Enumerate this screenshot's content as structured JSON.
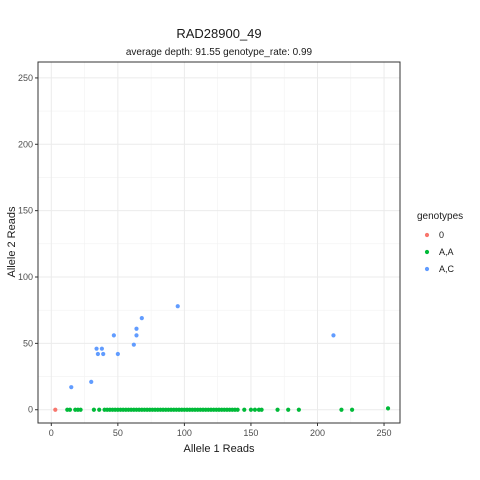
{
  "chart_data": {
    "type": "scatter",
    "title": "RAD28900_49",
    "subtitle": "average depth:  91.55  genotype_rate:  0.99",
    "xlabel": "Allele 1 Reads",
    "ylabel": "Allele 2 Reads",
    "xlim": [
      -10,
      262
    ],
    "ylim": [
      -10,
      262
    ],
    "xticks": [
      0,
      50,
      100,
      150,
      200,
      250
    ],
    "yticks": [
      0,
      50,
      100,
      150,
      200,
      250
    ],
    "grid": true,
    "legend": {
      "title": "genotypes",
      "position": "right",
      "entries": [
        {
          "name": "0",
          "color": "#F8766D"
        },
        {
          "name": "A,A",
          "color": "#00BA38"
        },
        {
          "name": "A,C",
          "color": "#619CFF"
        }
      ]
    },
    "series": [
      {
        "name": "0",
        "color": "#F8766D",
        "points": [
          [
            3,
            0
          ]
        ]
      },
      {
        "name": "A,A",
        "color": "#00BA38",
        "points": [
          [
            12,
            0
          ],
          [
            14,
            0
          ],
          [
            18,
            0
          ],
          [
            20,
            0
          ],
          [
            22,
            0
          ],
          [
            32,
            0
          ],
          [
            36,
            0
          ],
          [
            40,
            0
          ],
          [
            42,
            0
          ],
          [
            44,
            0
          ],
          [
            46,
            0
          ],
          [
            48,
            0
          ],
          [
            50,
            0
          ],
          [
            52,
            0
          ],
          [
            54,
            0
          ],
          [
            56,
            0
          ],
          [
            58,
            0
          ],
          [
            60,
            0
          ],
          [
            62,
            0
          ],
          [
            64,
            0
          ],
          [
            66,
            0
          ],
          [
            68,
            0
          ],
          [
            70,
            0
          ],
          [
            72,
            0
          ],
          [
            74,
            0
          ],
          [
            76,
            0
          ],
          [
            78,
            0
          ],
          [
            80,
            0
          ],
          [
            82,
            0
          ],
          [
            84,
            0
          ],
          [
            86,
            0
          ],
          [
            88,
            0
          ],
          [
            90,
            0
          ],
          [
            92,
            0
          ],
          [
            94,
            0
          ],
          [
            96,
            0
          ],
          [
            98,
            0
          ],
          [
            100,
            0
          ],
          [
            102,
            0
          ],
          [
            104,
            0
          ],
          [
            106,
            0
          ],
          [
            108,
            0
          ],
          [
            110,
            0
          ],
          [
            112,
            0
          ],
          [
            114,
            0
          ],
          [
            116,
            0
          ],
          [
            118,
            0
          ],
          [
            120,
            0
          ],
          [
            122,
            0
          ],
          [
            124,
            0
          ],
          [
            126,
            0
          ],
          [
            128,
            0
          ],
          [
            130,
            0
          ],
          [
            132,
            0
          ],
          [
            134,
            0
          ],
          [
            136,
            0
          ],
          [
            138,
            0
          ],
          [
            140,
            0
          ],
          [
            145,
            0
          ],
          [
            150,
            0
          ],
          [
            153,
            0
          ],
          [
            156,
            0
          ],
          [
            158,
            0
          ],
          [
            170,
            0
          ],
          [
            178,
            0
          ],
          [
            186,
            0
          ],
          [
            218,
            0
          ],
          [
            226,
            0
          ],
          [
            253,
            1
          ]
        ]
      },
      {
        "name": "A,C",
        "color": "#619CFF",
        "points": [
          [
            15,
            17
          ],
          [
            30,
            21
          ],
          [
            34,
            46
          ],
          [
            35,
            42
          ],
          [
            38,
            46
          ],
          [
            39,
            42
          ],
          [
            47,
            56
          ],
          [
            50,
            42
          ],
          [
            62,
            49
          ],
          [
            64,
            56
          ],
          [
            64,
            61
          ],
          [
            68,
            69
          ],
          [
            95,
            78
          ],
          [
            212,
            56
          ]
        ]
      }
    ]
  }
}
